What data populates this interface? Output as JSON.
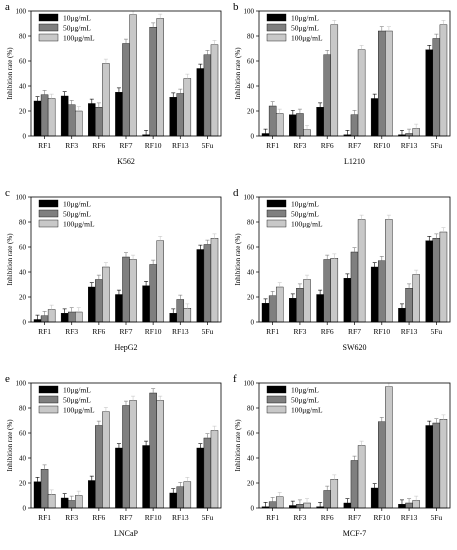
{
  "chart_data": [
    {
      "type": "bar",
      "panel_letter": "a",
      "xlabel": "K562",
      "ylabel": "Inhibition rate (%)",
      "ylim": [
        0,
        100
      ],
      "yticks": [
        0,
        20,
        40,
        60,
        80,
        100
      ],
      "categories": [
        "RF1",
        "RF3",
        "RF6",
        "RF7",
        "RF10",
        "RF13",
        "5Fu"
      ],
      "legend_position": "top-left",
      "series": [
        {
          "name": "10μg/mL",
          "color": "#000000",
          "values": [
            28,
            32,
            26,
            35,
            1,
            31,
            54
          ]
        },
        {
          "name": "50μg/mL",
          "color": "#7f7f7f",
          "values": [
            33,
            25,
            23,
            74,
            87,
            34,
            65
          ]
        },
        {
          "name": "100μg/mL",
          "color": "#c8c8c8",
          "values": [
            30,
            20,
            58,
            97,
            94,
            46,
            73
          ]
        }
      ]
    },
    {
      "type": "bar",
      "panel_letter": "b",
      "xlabel": "L1210",
      "ylabel": "Inhibition rate (%)",
      "ylim": [
        0,
        100
      ],
      "yticks": [
        0,
        20,
        40,
        60,
        80,
        100
      ],
      "categories": [
        "RF1",
        "RF3",
        "RF6",
        "RF7",
        "RF10",
        "RF13",
        "5Fu"
      ],
      "legend_position": "top-left",
      "series": [
        {
          "name": "10μg/mL",
          "color": "#000000",
          "values": [
            2,
            17,
            23,
            1,
            30,
            1,
            69
          ]
        },
        {
          "name": "50μg/mL",
          "color": "#7f7f7f",
          "values": [
            24,
            18,
            65,
            17,
            84,
            2,
            78
          ]
        },
        {
          "name": "100μg/mL",
          "color": "#c8c8c8",
          "values": [
            18,
            5,
            89,
            69,
            84,
            6,
            89
          ]
        }
      ]
    },
    {
      "type": "bar",
      "panel_letter": "c",
      "xlabel": "HepG2",
      "ylabel": "Inhibition rate (%)",
      "ylim": [
        0,
        100
      ],
      "yticks": [
        0,
        20,
        40,
        60,
        80,
        100
      ],
      "categories": [
        "RF1",
        "RF3",
        "RF6",
        "RF7",
        "RF10",
        "RF13",
        "5Fu"
      ],
      "legend_position": "top-left",
      "series": [
        {
          "name": "10μg/mL",
          "color": "#000000",
          "values": [
            2,
            7,
            28,
            22,
            29,
            7,
            58
          ]
        },
        {
          "name": "50μg/mL",
          "color": "#7f7f7f",
          "values": [
            5,
            8,
            34,
            52,
            46,
            18,
            62
          ]
        },
        {
          "name": "100μg/mL",
          "color": "#c8c8c8",
          "values": [
            10,
            8,
            44,
            50,
            65,
            11,
            67
          ]
        }
      ]
    },
    {
      "type": "bar",
      "panel_letter": "d",
      "xlabel": "SW620",
      "ylabel": "Inhibition rate (%)",
      "ylim": [
        0,
        100
      ],
      "yticks": [
        0,
        20,
        40,
        60,
        80,
        100
      ],
      "categories": [
        "RF1",
        "RF3",
        "RF6",
        "RF7",
        "RF10",
        "RF13",
        "5Fu"
      ],
      "legend_position": "top-left",
      "series": [
        {
          "name": "10μg/mL",
          "color": "#000000",
          "values": [
            15,
            19,
            22,
            35,
            44,
            11,
            65
          ]
        },
        {
          "name": "50μg/mL",
          "color": "#7f7f7f",
          "values": [
            21,
            27,
            50,
            56,
            49,
            27,
            67
          ]
        },
        {
          "name": "100μg/mL",
          "color": "#c8c8c8",
          "values": [
            28,
            34,
            51,
            82,
            82,
            38,
            72
          ]
        }
      ]
    },
    {
      "type": "bar",
      "panel_letter": "e",
      "xlabel": "LNCaP",
      "ylabel": "Inhibition rate (%)",
      "ylim": [
        0,
        100
      ],
      "yticks": [
        0,
        20,
        40,
        60,
        80,
        100
      ],
      "categories": [
        "RF1",
        "RF3",
        "RF6",
        "RF7",
        "RF10",
        "RF13",
        "5Fu"
      ],
      "legend_position": "top-left",
      "series": [
        {
          "name": "10μg/mL",
          "color": "#000000",
          "values": [
            21,
            8,
            22,
            48,
            50,
            12,
            48
          ]
        },
        {
          "name": "50μg/mL",
          "color": "#7f7f7f",
          "values": [
            31,
            6,
            66,
            82,
            92,
            17,
            56
          ]
        },
        {
          "name": "100μg/mL",
          "color": "#c8c8c8",
          "values": [
            11,
            10,
            77,
            86,
            86,
            21,
            62
          ]
        }
      ]
    },
    {
      "type": "bar",
      "panel_letter": "f",
      "xlabel": "MCF-7",
      "ylabel": "Inhibition rate (%)",
      "ylim": [
        0,
        100
      ],
      "yticks": [
        0,
        20,
        40,
        60,
        80,
        100
      ],
      "categories": [
        "RF1",
        "RF3",
        "RF6",
        "RF7",
        "RF10",
        "RF13",
        "5Fu"
      ],
      "legend_position": "top-left",
      "series": [
        {
          "name": "10μg/mL",
          "color": "#000000",
          "values": [
            1,
            2,
            1,
            4,
            16,
            3,
            66
          ]
        },
        {
          "name": "50μg/mL",
          "color": "#7f7f7f",
          "values": [
            5,
            3,
            14,
            38,
            69,
            4,
            68
          ]
        },
        {
          "name": "100μg/mL",
          "color": "#c8c8c8",
          "values": [
            9,
            4,
            23,
            50,
            97,
            6,
            71
          ]
        }
      ]
    }
  ]
}
